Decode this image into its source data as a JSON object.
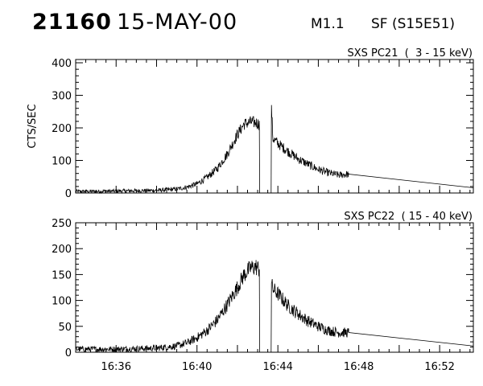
{
  "header": {
    "flare_id": "21160",
    "date": "15-MAY-00",
    "goes_class": "M1.1",
    "optical_class": "SF (S15E51)"
  },
  "chart_data": [
    {
      "type": "line",
      "title": "SXS PC21  (  3 - 15 keV)",
      "ylabel": "CTS/SEC",
      "xlabel": "",
      "ylim": [
        0,
        410
      ],
      "xlim": [
        "16:34:00",
        "16:53:40"
      ],
      "yticks": [
        0,
        100,
        200,
        300,
        400
      ],
      "xticks": [],
      "grid": false,
      "series": [
        {
          "x": [
            "16:34:00",
            "16:35:00",
            "16:36:00",
            "16:37:00",
            "16:38:00",
            "16:39:00",
            "16:39:30",
            "16:40:00",
            "16:40:30",
            "16:41:00",
            "16:41:30",
            "16:42:00",
            "16:42:20",
            "16:42:40",
            "16:42:55",
            "16:43:05",
            "16:43:06",
            "16:43:40",
            "16:43:41",
            "16:43:45",
            "16:44:00",
            "16:44:30",
            "16:45:00",
            "16:45:30",
            "16:46:00",
            "16:46:30",
            "16:47:00",
            "16:47:30",
            "16:53:40"
          ],
          "values": [
            5,
            5,
            6,
            7,
            8,
            12,
            18,
            28,
            48,
            75,
            120,
            180,
            212,
            218,
            216,
            212,
            0,
            0,
            270,
            168,
            152,
            128,
            105,
            88,
            72,
            62,
            55,
            58,
            16
          ]
        }
      ]
    },
    {
      "type": "line",
      "title": "SXS PC22  ( 15 - 40 keV)",
      "ylabel": "",
      "xlabel": "",
      "ylim": [
        0,
        250
      ],
      "xlim": [
        "16:34:00",
        "16:53:40"
      ],
      "yticks": [
        0,
        50,
        100,
        150,
        200,
        250
      ],
      "xticks": [
        "16:36",
        "16:40",
        "16:44",
        "16:48",
        "16:52"
      ],
      "grid": false,
      "series": [
        {
          "x": [
            "16:34:00",
            "16:35:00",
            "16:36:00",
            "16:37:00",
            "16:38:00",
            "16:39:00",
            "16:39:30",
            "16:40:00",
            "16:40:30",
            "16:41:00",
            "16:41:30",
            "16:42:00",
            "16:42:20",
            "16:42:40",
            "16:42:55",
            "16:43:05",
            "16:43:06",
            "16:43:40",
            "16:43:41",
            "16:43:45",
            "16:44:00",
            "16:44:30",
            "16:45:00",
            "16:45:30",
            "16:46:00",
            "16:46:30",
            "16:47:00",
            "16:47:30",
            "16:53:40"
          ],
          "values": [
            6,
            6,
            6,
            7,
            8,
            12,
            18,
            28,
            42,
            62,
            92,
            125,
            150,
            163,
            165,
            160,
            0,
            0,
            133,
            122,
            113,
            90,
            74,
            60,
            50,
            42,
            38,
            38,
            12
          ]
        }
      ]
    }
  ]
}
